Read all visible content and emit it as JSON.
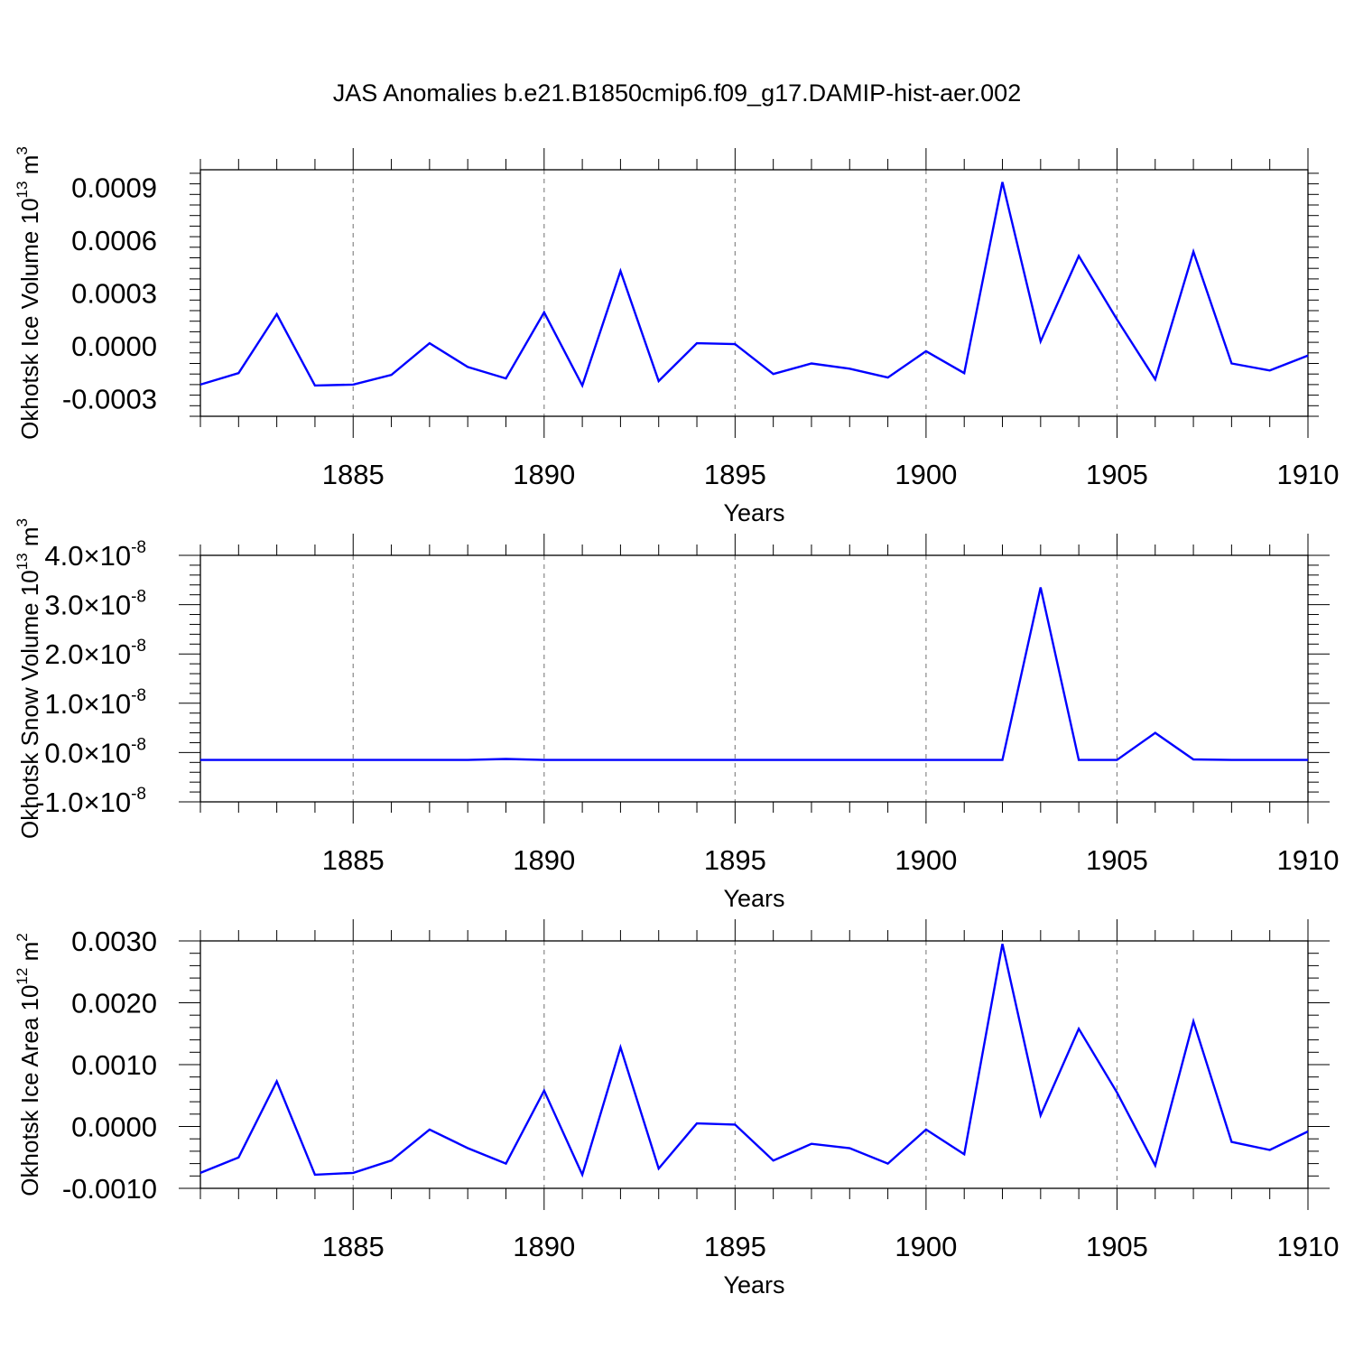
{
  "title": "JAS Anomalies b.e21.B1850cmip6.f09_g17.DAMIP-hist-aer.002",
  "line_color": "#0000ff",
  "chart_data": [
    {
      "type": "line",
      "ylabel_main": "Okhotsk Ice Volume 10",
      "ylabel_exp": "13",
      "ylabel_unit": " m",
      "ylabel_unit_exp": "3",
      "xlabel": "Years",
      "xlim": [
        1881,
        1910
      ],
      "ylim": [
        -0.0004,
        0.001
      ],
      "xticks": [
        1885,
        1890,
        1895,
        1900,
        1905,
        1910
      ],
      "xtick_labels": [
        "1885",
        "1890",
        "1895",
        "1900",
        "1905",
        "1910"
      ],
      "yticks": [
        -0.0003,
        0.0,
        0.0003,
        0.0006,
        0.0009
      ],
      "ytick_labels": [
        "-0.0003",
        "0.0000",
        "0.0003",
        "0.0006",
        "0.0009"
      ],
      "x": [
        1881,
        1882,
        1883,
        1884,
        1885,
        1886,
        1887,
        1888,
        1889,
        1890,
        1891,
        1892,
        1893,
        1894,
        1895,
        1896,
        1897,
        1898,
        1899,
        1900,
        1901,
        1902,
        1903,
        1904,
        1905,
        1906,
        1907,
        1908,
        1909,
        1910
      ],
      "values": [
        -0.00022,
        -0.000155,
        0.00018,
        -0.000225,
        -0.00022,
        -0.000165,
        1.5e-05,
        -0.00012,
        -0.000185,
        0.00019,
        -0.000225,
        0.000425,
        -0.0002,
        1.5e-05,
        1e-05,
        -0.00016,
        -0.0001,
        -0.00013,
        -0.00018,
        -3e-05,
        -0.000155,
        0.00093,
        2.5e-05,
        0.00051,
        0.00015,
        -0.00019,
        0.000535,
        -0.0001,
        -0.00014,
        -5.5e-05
      ]
    },
    {
      "type": "line",
      "ylabel_main": "Okhotsk Snow Volume 10",
      "ylabel_exp": "13",
      "ylabel_unit": " m",
      "ylabel_unit_exp": "3",
      "xlabel": "Years",
      "xlim": [
        1881,
        1910
      ],
      "ylim": [
        -1e-08,
        4e-08
      ],
      "xticks": [
        1885,
        1890,
        1895,
        1900,
        1905,
        1910
      ],
      "xtick_labels": [
        "1885",
        "1890",
        "1895",
        "1900",
        "1905",
        "1910"
      ],
      "yticks": [
        -1e-08,
        0.0,
        1e-08,
        2e-08,
        3e-08,
        4e-08
      ],
      "ytick_mantissas": [
        "-1.0",
        "0.0",
        "1.0",
        "2.0",
        "3.0",
        "4.0"
      ],
      "ytick_times": "×10",
      "ytick_exp": "-8",
      "x": [
        1881,
        1882,
        1883,
        1884,
        1885,
        1886,
        1887,
        1888,
        1889,
        1890,
        1891,
        1892,
        1893,
        1894,
        1895,
        1896,
        1897,
        1898,
        1899,
        1900,
        1901,
        1902,
        1903,
        1904,
        1905,
        1906,
        1907,
        1908,
        1909,
        1910
      ],
      "values": [
        -1.5e-09,
        -1.5e-09,
        -1.5e-09,
        -1.5e-09,
        -1.5e-09,
        -1.5e-09,
        -1.5e-09,
        -1.5e-09,
        -1.3e-09,
        -1.5e-09,
        -1.5e-09,
        -1.5e-09,
        -1.5e-09,
        -1.5e-09,
        -1.5e-09,
        -1.5e-09,
        -1.5e-09,
        -1.5e-09,
        -1.5e-09,
        -1.5e-09,
        -1.5e-09,
        -1.5e-09,
        3.35e-08,
        -1.5e-09,
        -1.5e-09,
        4e-09,
        -1.4e-09,
        -1.5e-09,
        -1.5e-09,
        -1.5e-09
      ]
    },
    {
      "type": "line",
      "ylabel_main": "Okhotsk Ice Area 10",
      "ylabel_exp": "12",
      "ylabel_unit": " m",
      "ylabel_unit_exp": "2",
      "xlabel": "Years",
      "xlim": [
        1881,
        1910
      ],
      "ylim": [
        -0.001,
        0.003
      ],
      "xticks": [
        1885,
        1890,
        1895,
        1900,
        1905,
        1910
      ],
      "xtick_labels": [
        "1885",
        "1890",
        "1895",
        "1900",
        "1905",
        "1910"
      ],
      "yticks": [
        -0.001,
        0.0,
        0.001,
        0.002,
        0.003
      ],
      "ytick_labels": [
        "-0.0010",
        "0.0000",
        "0.0010",
        "0.0020",
        "0.0030"
      ],
      "x": [
        1881,
        1882,
        1883,
        1884,
        1885,
        1886,
        1887,
        1888,
        1889,
        1890,
        1891,
        1892,
        1893,
        1894,
        1895,
        1896,
        1897,
        1898,
        1899,
        1900,
        1901,
        1902,
        1903,
        1904,
        1905,
        1906,
        1907,
        1908,
        1909,
        1910
      ],
      "values": [
        -0.00075,
        -0.0005,
        0.00073,
        -0.00078,
        -0.00075,
        -0.00055,
        -5e-05,
        -0.00035,
        -0.0006,
        0.00058,
        -0.00078,
        0.00128,
        -0.00068,
        5e-05,
        3e-05,
        -0.00055,
        -0.00028,
        -0.00035,
        -0.0006,
        -5e-05,
        -0.00045,
        0.00295,
        0.00018,
        0.00158,
        0.00055,
        -0.00063,
        0.0017,
        -0.00025,
        -0.00038,
        -8e-05
      ]
    }
  ]
}
